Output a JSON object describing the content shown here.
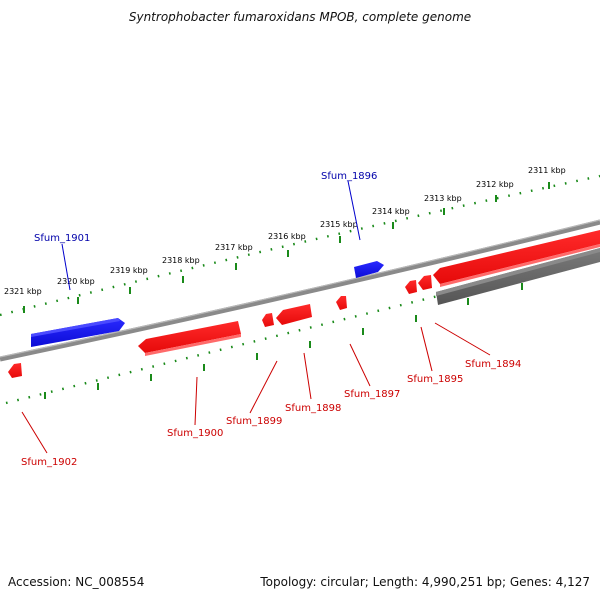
{
  "title": "Syntrophobacter fumaroxidans MPOB, complete genome",
  "footer": {
    "accession": "Accession: NC_008554",
    "summary": "Topology: circular; Length: 4,990,251 bp; Genes: 4,127"
  },
  "colors": {
    "forward_gene": "#1010e6",
    "reverse_gene": "#e61010",
    "other_gene": "#606060",
    "backbone": "#777777",
    "tick": "#1a8a1a",
    "forward_label": "#0000aa",
    "reverse_label": "#cc0000"
  },
  "scale_ticks": [
    {
      "label": "2311 kbp"
    },
    {
      "label": "2312 kbp"
    },
    {
      "label": "2313 kbp"
    },
    {
      "label": "2314 kbp"
    },
    {
      "label": "2315 kbp"
    },
    {
      "label": "2316 kbp"
    },
    {
      "label": "2317 kbp"
    },
    {
      "label": "2318 kbp"
    },
    {
      "label": "2319 kbp"
    },
    {
      "label": "2320 kbp"
    },
    {
      "label": "2321 kbp"
    }
  ],
  "genes": [
    {
      "name": "Sfum_1894",
      "strand": "reverse"
    },
    {
      "name": "Sfum_1895",
      "strand": "reverse"
    },
    {
      "name": "Sfum_1896",
      "strand": "forward"
    },
    {
      "name": "Sfum_1897",
      "strand": "reverse"
    },
    {
      "name": "Sfum_1898",
      "strand": "reverse"
    },
    {
      "name": "Sfum_1899",
      "strand": "reverse"
    },
    {
      "name": "Sfum_1900",
      "strand": "reverse"
    },
    {
      "name": "Sfum_1901",
      "strand": "forward"
    },
    {
      "name": "Sfum_1902",
      "strand": "reverse"
    }
  ]
}
